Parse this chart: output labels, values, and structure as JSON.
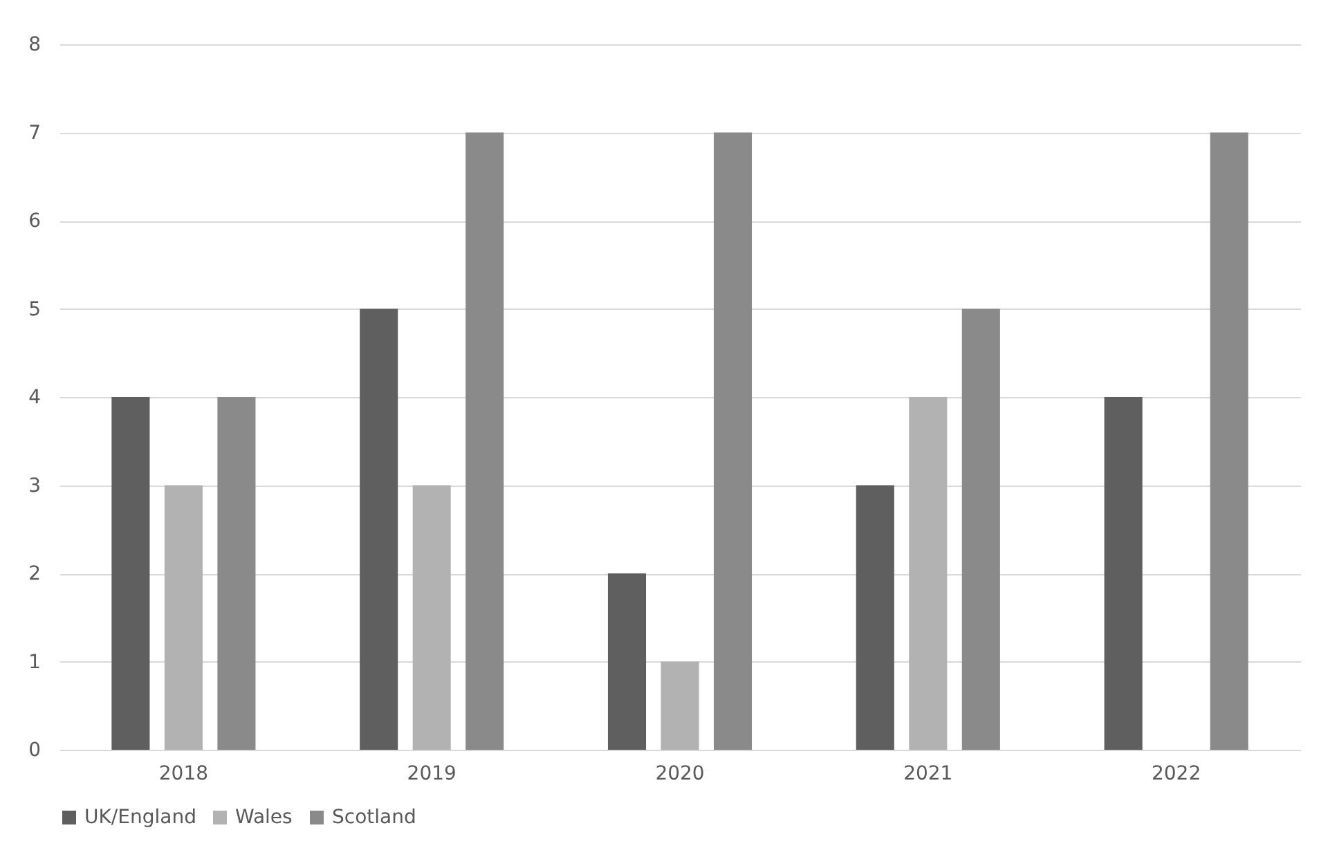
{
  "chart_data": {
    "type": "bar",
    "categories": [
      "2018",
      "2019",
      "2020",
      "2021",
      "2022"
    ],
    "series": [
      {
        "name": "UK/England",
        "color": "#5f5f5f",
        "values": [
          4,
          5,
          2,
          3,
          4
        ]
      },
      {
        "name": "Wales",
        "color": "#b2b2b2",
        "values": [
          3,
          3,
          1,
          4,
          null
        ]
      },
      {
        "name": "Scotland",
        "color": "#8a8a8a",
        "values": [
          4,
          7,
          7,
          5,
          7
        ]
      }
    ],
    "ylim": [
      0,
      8
    ],
    "yticks": [
      0,
      1,
      2,
      3,
      4,
      5,
      6,
      7,
      8
    ],
    "grid": "y",
    "legend": "bottom"
  }
}
